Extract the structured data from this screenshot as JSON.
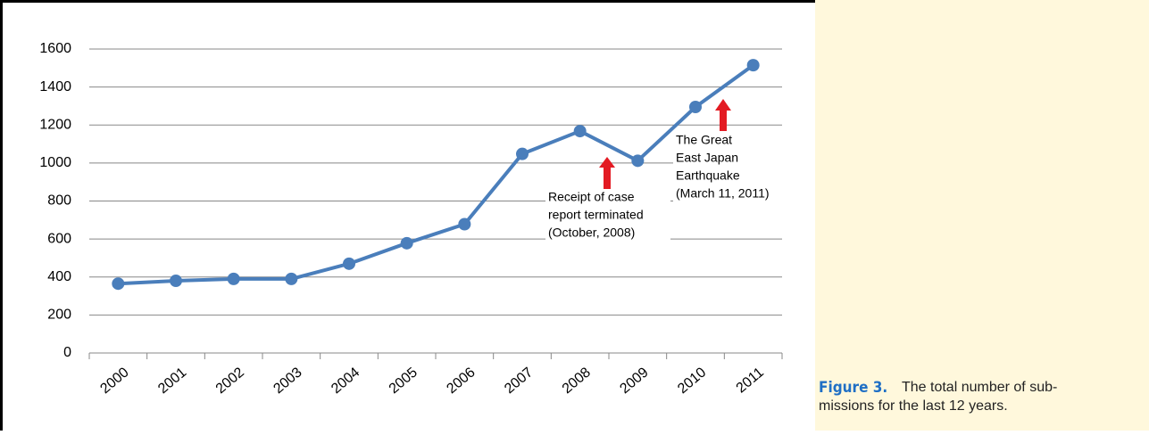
{
  "chart_data": {
    "type": "line",
    "categories": [
      "2000",
      "2001",
      "2002",
      "2003",
      "2004",
      "2005",
      "2006",
      "2007",
      "2008",
      "2009",
      "2010",
      "2011"
    ],
    "values": [
      365,
      380,
      390,
      390,
      470,
      578,
      678,
      1048,
      1168,
      1012,
      1295,
      1515
    ],
    "color": "#4a7ebb",
    "ylim": [
      0,
      1600
    ],
    "yticks": [
      0,
      200,
      400,
      600,
      800,
      1000,
      1200,
      1400,
      1600
    ],
    "grid": true,
    "annotations": [
      {
        "lines": [
          "Receipt of case",
          "report terminated",
          "(October, 2008)"
        ]
      },
      {
        "lines": [
          "The Great",
          "East Japan",
          "Earthquake",
          "(March 11, 2011)"
        ]
      }
    ]
  },
  "caption": {
    "label": "Figure 3.",
    "lines": [
      "The total number of sub-",
      "missions for the last 12 years."
    ]
  }
}
